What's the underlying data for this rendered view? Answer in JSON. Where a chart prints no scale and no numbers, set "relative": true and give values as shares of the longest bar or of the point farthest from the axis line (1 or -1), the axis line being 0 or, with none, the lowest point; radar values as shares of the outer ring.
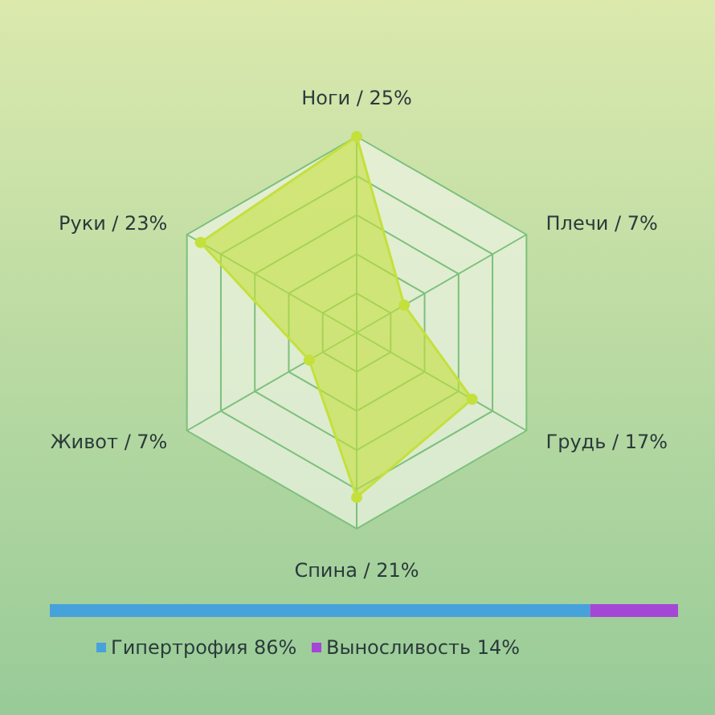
{
  "chart_data": [
    {
      "type": "radar",
      "categories": [
        "Ноги / 25%",
        "Плечи / 7%",
        "Грудь / 17%",
        "Спина / 21%",
        "Живот / 7%",
        "Руки / 23%"
      ],
      "series": [
        {
          "color": "#c4e03c",
          "values": [
            1,
            0.28,
            0.68,
            0.84,
            0.28,
            0.92
          ]
        }
      ],
      "relative": true,
      "grid": true,
      "marker": "circle"
    },
    {
      "type": "bar",
      "orientation": "horizontal",
      "stacked": true,
      "categories": [
        null
      ],
      "relative": true,
      "series": [
        {
          "name": "Гипертрофия 86%",
          "color": "#47a2dc",
          "values": [
            0.86
          ]
        },
        {
          "name": "Выносливость 14%",
          "color": "#a447d6",
          "values": [
            0.14
          ]
        }
      ],
      "legend": "bottom"
    }
  ]
}
